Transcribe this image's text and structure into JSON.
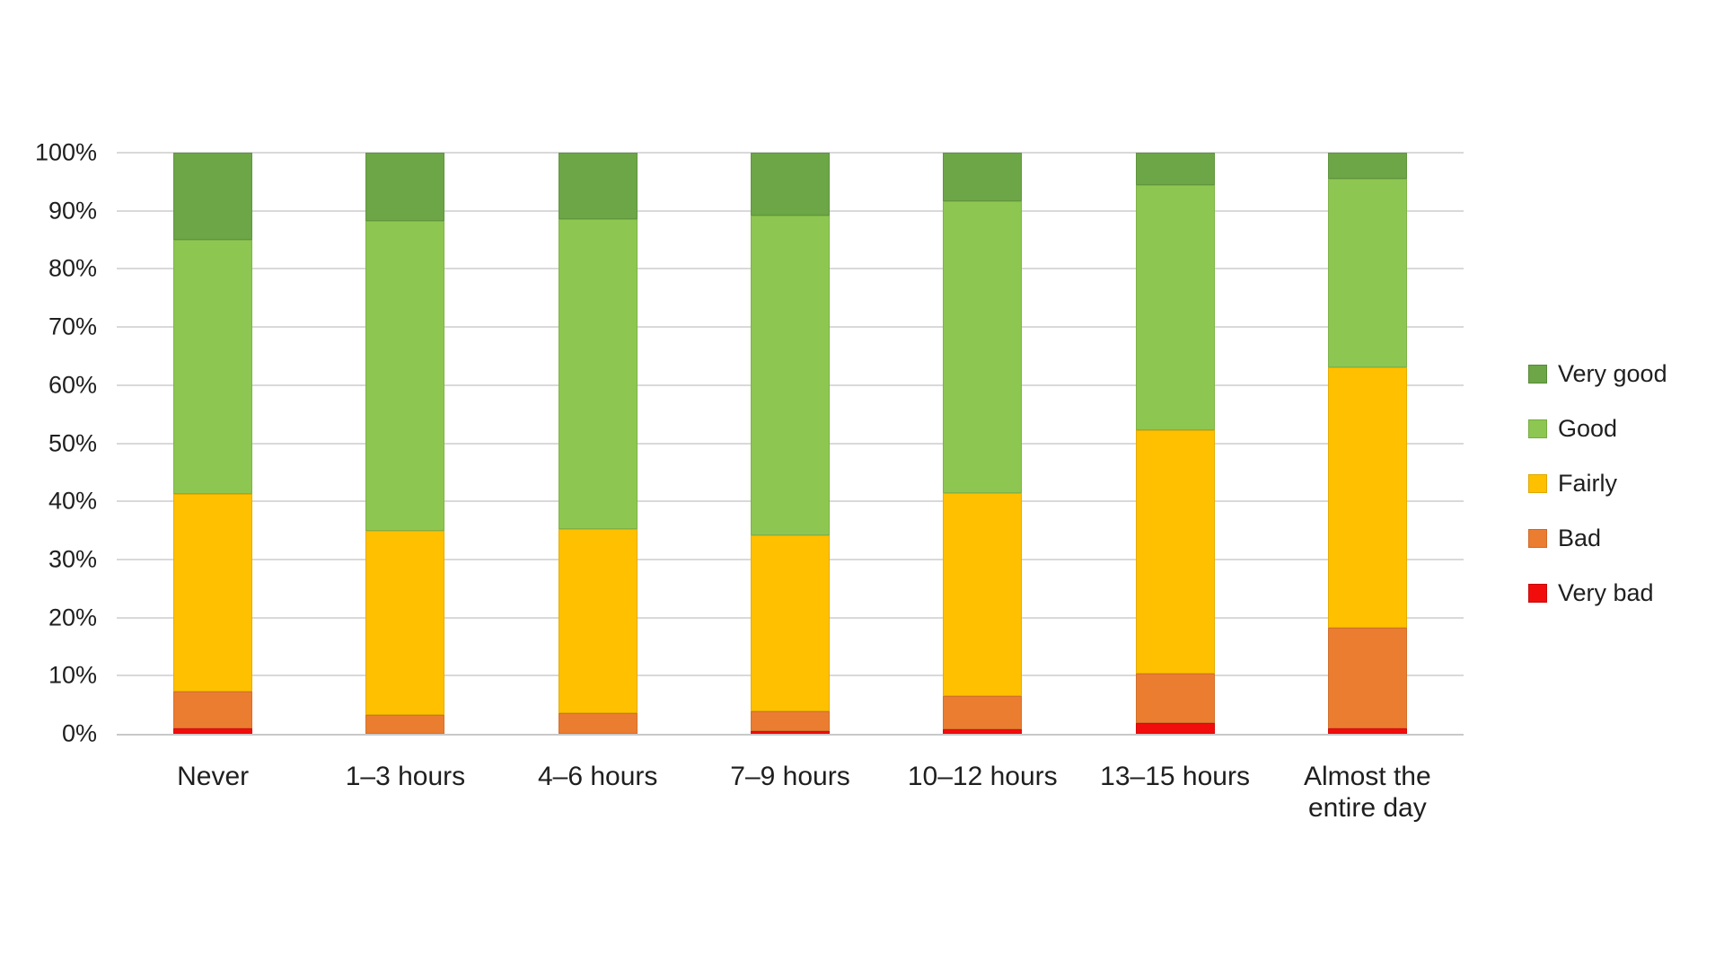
{
  "chart_data": {
    "type": "bar",
    "subtype": "stacked-100-percent",
    "title": "",
    "xlabel": "",
    "ylabel": "",
    "ylim": [
      0,
      100
    ],
    "grid": "horizontal",
    "legend_position": "right",
    "y_ticks": [
      "0%",
      "10%",
      "20%",
      "30%",
      "40%",
      "50%",
      "60%",
      "70%",
      "80%",
      "90%",
      "100%"
    ],
    "categories": [
      "Never",
      "1–3 hours",
      "4–6 hours",
      "7–9 hours",
      "10–12 hours",
      "13–15 hours",
      "Almost the entire day"
    ],
    "series": [
      {
        "name": "Very bad",
        "color": "#F20D0D",
        "border": "#C70A0A",
        "values": [
          1.0,
          0,
          0,
          0.5,
          0.8,
          1.8,
          1.0
        ]
      },
      {
        "name": "Bad",
        "color": "#EB7D31",
        "border": "#D06A26",
        "values": [
          6.2,
          3.3,
          3.6,
          3.4,
          5.7,
          8.5,
          17.3
        ]
      },
      {
        "name": "Fairly",
        "color": "#FFC000",
        "border": "#DFA700",
        "values": [
          34.1,
          31.7,
          31.6,
          30.3,
          35.0,
          42.0,
          44.7
        ]
      },
      {
        "name": "Good",
        "color": "#8DC751",
        "border": "#76AC3F",
        "values": [
          43.7,
          53.2,
          53.3,
          55.0,
          50.2,
          42.1,
          32.5
        ]
      },
      {
        "name": "Very good",
        "color": "#6CA647",
        "border": "#578A38",
        "values": [
          15.0,
          11.8,
          11.5,
          10.8,
          8.3,
          5.6,
          4.5
        ]
      }
    ],
    "legend": [
      "Very good",
      "Good",
      "Fairly",
      "Bad",
      "Very bad"
    ]
  },
  "colors": {
    "background": "#FFFFFF",
    "gridline": "#D9D9D9",
    "axis_line": "#C9C9C9",
    "text": "#1F1F1F"
  }
}
